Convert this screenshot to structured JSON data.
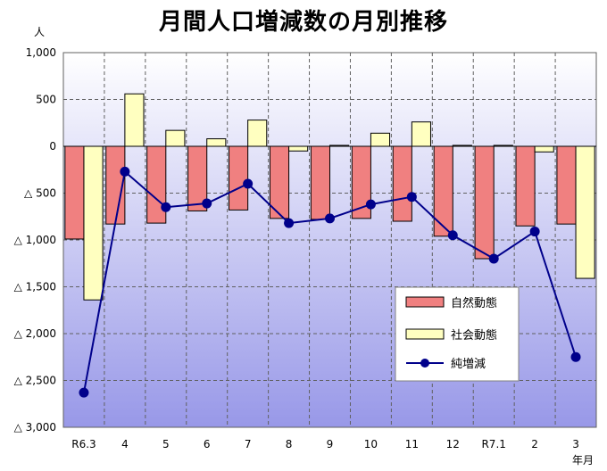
{
  "chart_data": {
    "type": "bar",
    "title": "月間人口増減数の月別推移",
    "ylabel": "人",
    "xlabel": "年月",
    "ylim": [
      -3000,
      1000
    ],
    "y_ticks": [
      {
        "value": 1000,
        "label": "1,000"
      },
      {
        "value": 500,
        "label": "500"
      },
      {
        "value": 0,
        "label": "0"
      },
      {
        "value": -500,
        "label": "△ 500"
      },
      {
        "value": -1000,
        "label": "△ 1,000"
      },
      {
        "value": -1500,
        "label": "△ 1,500"
      },
      {
        "value": -2000,
        "label": "△ 2,000"
      },
      {
        "value": -2500,
        "label": "△ 2,500"
      },
      {
        "value": -3000,
        "label": "△ 3,000"
      }
    ],
    "categories": [
      "R6.3",
      "4",
      "5",
      "6",
      "7",
      "8",
      "9",
      "10",
      "11",
      "12",
      "R7.1",
      "2",
      "3"
    ],
    "series": [
      {
        "name": "自然動態",
        "kind": "bar",
        "color": "#f08080",
        "values": [
          -990,
          -830,
          -820,
          -690,
          -680,
          -770,
          -780,
          -770,
          -800,
          -960,
          -1200,
          -850,
          -830
        ]
      },
      {
        "name": "社会動態",
        "kind": "bar",
        "color": "#ffffc0",
        "values": [
          -1640,
          560,
          170,
          80,
          280,
          -50,
          10,
          140,
          260,
          10,
          10,
          -60,
          -1410
        ]
      },
      {
        "name": "純増減",
        "kind": "line",
        "color": "#00008b",
        "values": [
          -2630,
          -270,
          -650,
          -610,
          -400,
          -820,
          -770,
          -620,
          -540,
          -950,
          -1200,
          -910,
          -2250
        ]
      }
    ],
    "legend_position": "bottom-right",
    "grid": true
  }
}
